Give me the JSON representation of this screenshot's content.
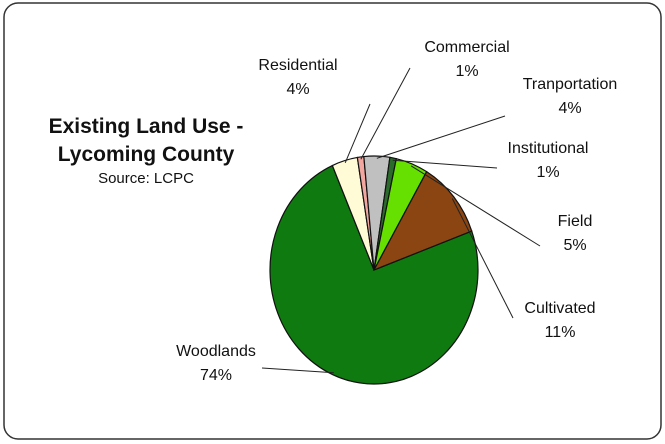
{
  "chart_data": {
    "type": "pie",
    "title": [
      "Existing Land Use -",
      "Lycoming County"
    ],
    "subtitle": "Source:  LCPC",
    "start_category": "Woodlands",
    "slices": [
      {
        "label": "Woodlands",
        "value": 74,
        "value_label": "74%",
        "color": "#0f7a0f"
      },
      {
        "label": "Residential",
        "value": 4,
        "value_label": "4%",
        "color": "#fffbd6"
      },
      {
        "label": "Commercial",
        "value": 1,
        "value_label": "1%",
        "color": "#f2a8a0"
      },
      {
        "label": "Tranportation",
        "value": 4,
        "value_label": "4%",
        "color": "#c0c0c0"
      },
      {
        "label": "Institutional",
        "value": 1,
        "value_label": "1%",
        "color": "#2a6a2a"
      },
      {
        "label": "Field",
        "value": 5,
        "value_label": "5%",
        "color": "#66e000"
      },
      {
        "label": "Cultivated",
        "value": 11,
        "value_label": "11%",
        "color": "#8b4513"
      }
    ]
  },
  "colors": {
    "frame_border": "#333333",
    "background": "#ffffff",
    "leader_line": "#222222"
  }
}
